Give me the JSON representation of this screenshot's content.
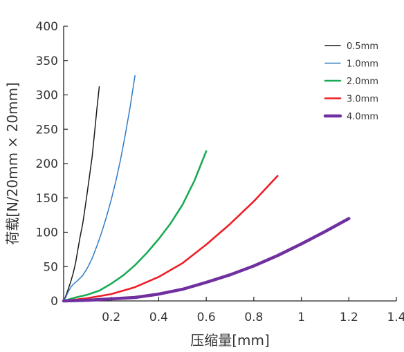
{
  "chart_data": {
    "type": "line",
    "title": "",
    "xlabel": "压缩量[mm]",
    "ylabel": "荷载[N/20mm × 20mm]",
    "xlim": [
      0,
      1.4
    ],
    "ylim": [
      0,
      400
    ],
    "x_ticks": [
      0.2,
      0.4,
      0.6,
      0.8,
      1,
      1.2,
      1.4
    ],
    "x_tick_labels": [
      "0.2",
      "0.4",
      "0.6",
      "0.8",
      "1",
      "1.2",
      "1.4"
    ],
    "y_ticks": [
      0,
      50,
      100,
      150,
      200,
      250,
      300,
      350,
      400
    ],
    "y_tick_labels": [
      "0",
      "50",
      "100",
      "150",
      "200",
      "250",
      "300",
      "350",
      "400"
    ],
    "grid": false,
    "legend_position": "top-right",
    "series": [
      {
        "name": "0.5mm",
        "color": "#1a1a1a",
        "x": [
          0,
          0.01,
          0.02,
          0.03,
          0.04,
          0.05,
          0.06,
          0.07,
          0.08,
          0.09,
          0.1,
          0.11,
          0.12,
          0.13,
          0.14,
          0.15
        ],
        "y": [
          0,
          8,
          18,
          28,
          40,
          55,
          75,
          95,
          112,
          135,
          160,
          185,
          210,
          245,
          280,
          312
        ]
      },
      {
        "name": "1.0mm",
        "color": "#2e7bc4",
        "x": [
          0,
          0.01,
          0.02,
          0.03,
          0.04,
          0.05,
          0.06,
          0.08,
          0.1,
          0.12,
          0.14,
          0.16,
          0.18,
          0.2,
          0.22,
          0.24,
          0.26,
          0.28,
          0.3
        ],
        "y": [
          0,
          6,
          14,
          20,
          24,
          27,
          30,
          37,
          48,
          62,
          80,
          100,
          122,
          147,
          175,
          207,
          243,
          283,
          328
        ]
      },
      {
        "name": "2.0mm",
        "color": "#1aaa55",
        "x": [
          0,
          0.05,
          0.1,
          0.15,
          0.2,
          0.25,
          0.3,
          0.35,
          0.4,
          0.45,
          0.5,
          0.55,
          0.6
        ],
        "y": [
          0,
          5,
          9,
          15,
          25,
          37,
          52,
          70,
          90,
          113,
          140,
          175,
          218
        ]
      },
      {
        "name": "3.0mm",
        "color": "#ee1c25",
        "x": [
          0,
          0.1,
          0.2,
          0.3,
          0.4,
          0.5,
          0.6,
          0.7,
          0.8,
          0.9
        ],
        "y": [
          0,
          4,
          10,
          20,
          35,
          55,
          82,
          112,
          145,
          182
        ]
      },
      {
        "name": "4.0mm",
        "color": "#7030a0",
        "x": [
          0,
          0.1,
          0.2,
          0.3,
          0.4,
          0.5,
          0.6,
          0.7,
          0.8,
          0.9,
          1.0,
          1.1,
          1.2
        ],
        "y": [
          0,
          1,
          3,
          5,
          10,
          17,
          27,
          38,
          51,
          66,
          83,
          101,
          120
        ]
      }
    ]
  }
}
